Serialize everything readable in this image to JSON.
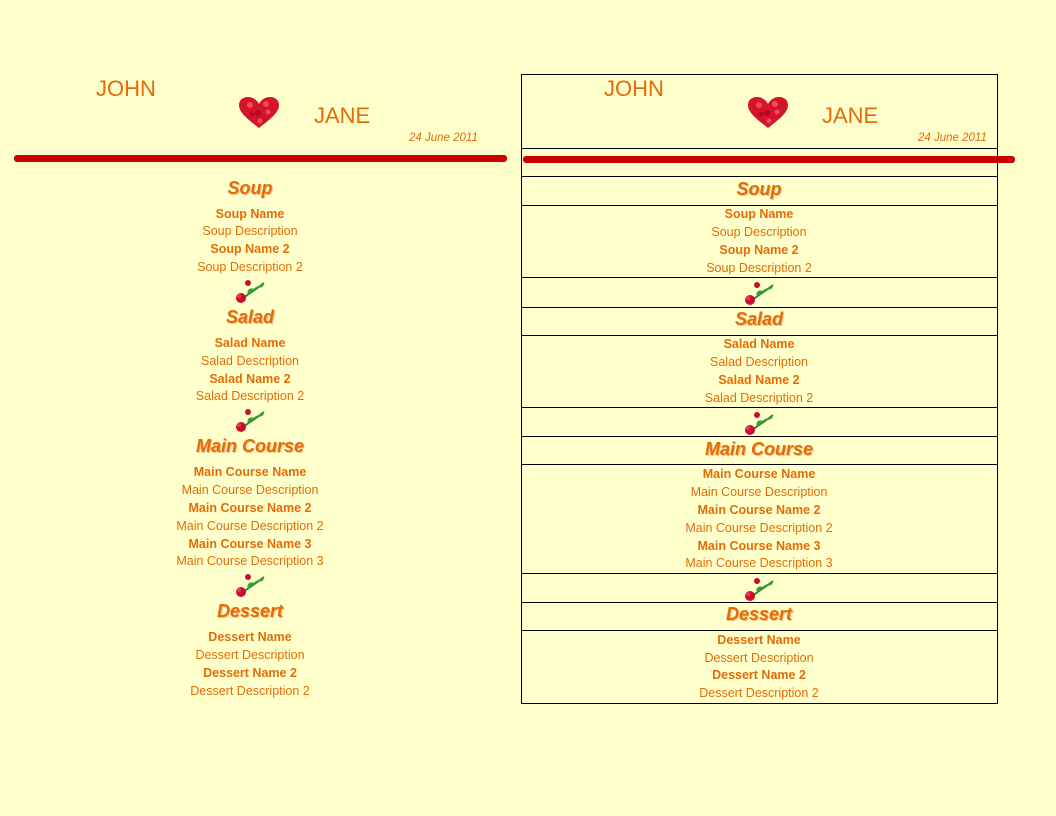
{
  "header": {
    "name1": "JOHN",
    "name2": "JANE",
    "date": "24 June 2011"
  },
  "sections": [
    {
      "title": "Soup",
      "items": [
        {
          "text": "Soup Name",
          "bold": true
        },
        {
          "text": "Soup Description",
          "bold": false
        },
        {
          "text": "Soup Name 2",
          "bold": true
        },
        {
          "text": "Soup Description 2",
          "bold": false
        }
      ]
    },
    {
      "title": "Salad",
      "items": [
        {
          "text": "Salad Name",
          "bold": true
        },
        {
          "text": "Salad Description",
          "bold": false
        },
        {
          "text": "Salad Name 2",
          "bold": true
        },
        {
          "text": "Salad Description 2",
          "bold": false
        }
      ]
    },
    {
      "title": "Main Course",
      "items": [
        {
          "text": "Main Course Name",
          "bold": true
        },
        {
          "text": "Main Course Description",
          "bold": false
        },
        {
          "text": "Main Course Name 2",
          "bold": true
        },
        {
          "text": "Main Course Description 2",
          "bold": false
        },
        {
          "text": "Main Course Name 3",
          "bold": true
        },
        {
          "text": "Main Course Description 3",
          "bold": false
        }
      ]
    },
    {
      "title": "Dessert",
      "items": [
        {
          "text": "Dessert Name",
          "bold": true
        },
        {
          "text": "Dessert Description",
          "bold": false
        },
        {
          "text": "Dessert Name 2",
          "bold": true
        },
        {
          "text": "Dessert Description 2",
          "bold": false
        }
      ]
    }
  ],
  "icons": {
    "heart": "heart-icon",
    "divider": "rose-icon"
  },
  "colors": {
    "background": "#ffffcc",
    "text": "#e36c09",
    "bar": "#cc0000"
  }
}
